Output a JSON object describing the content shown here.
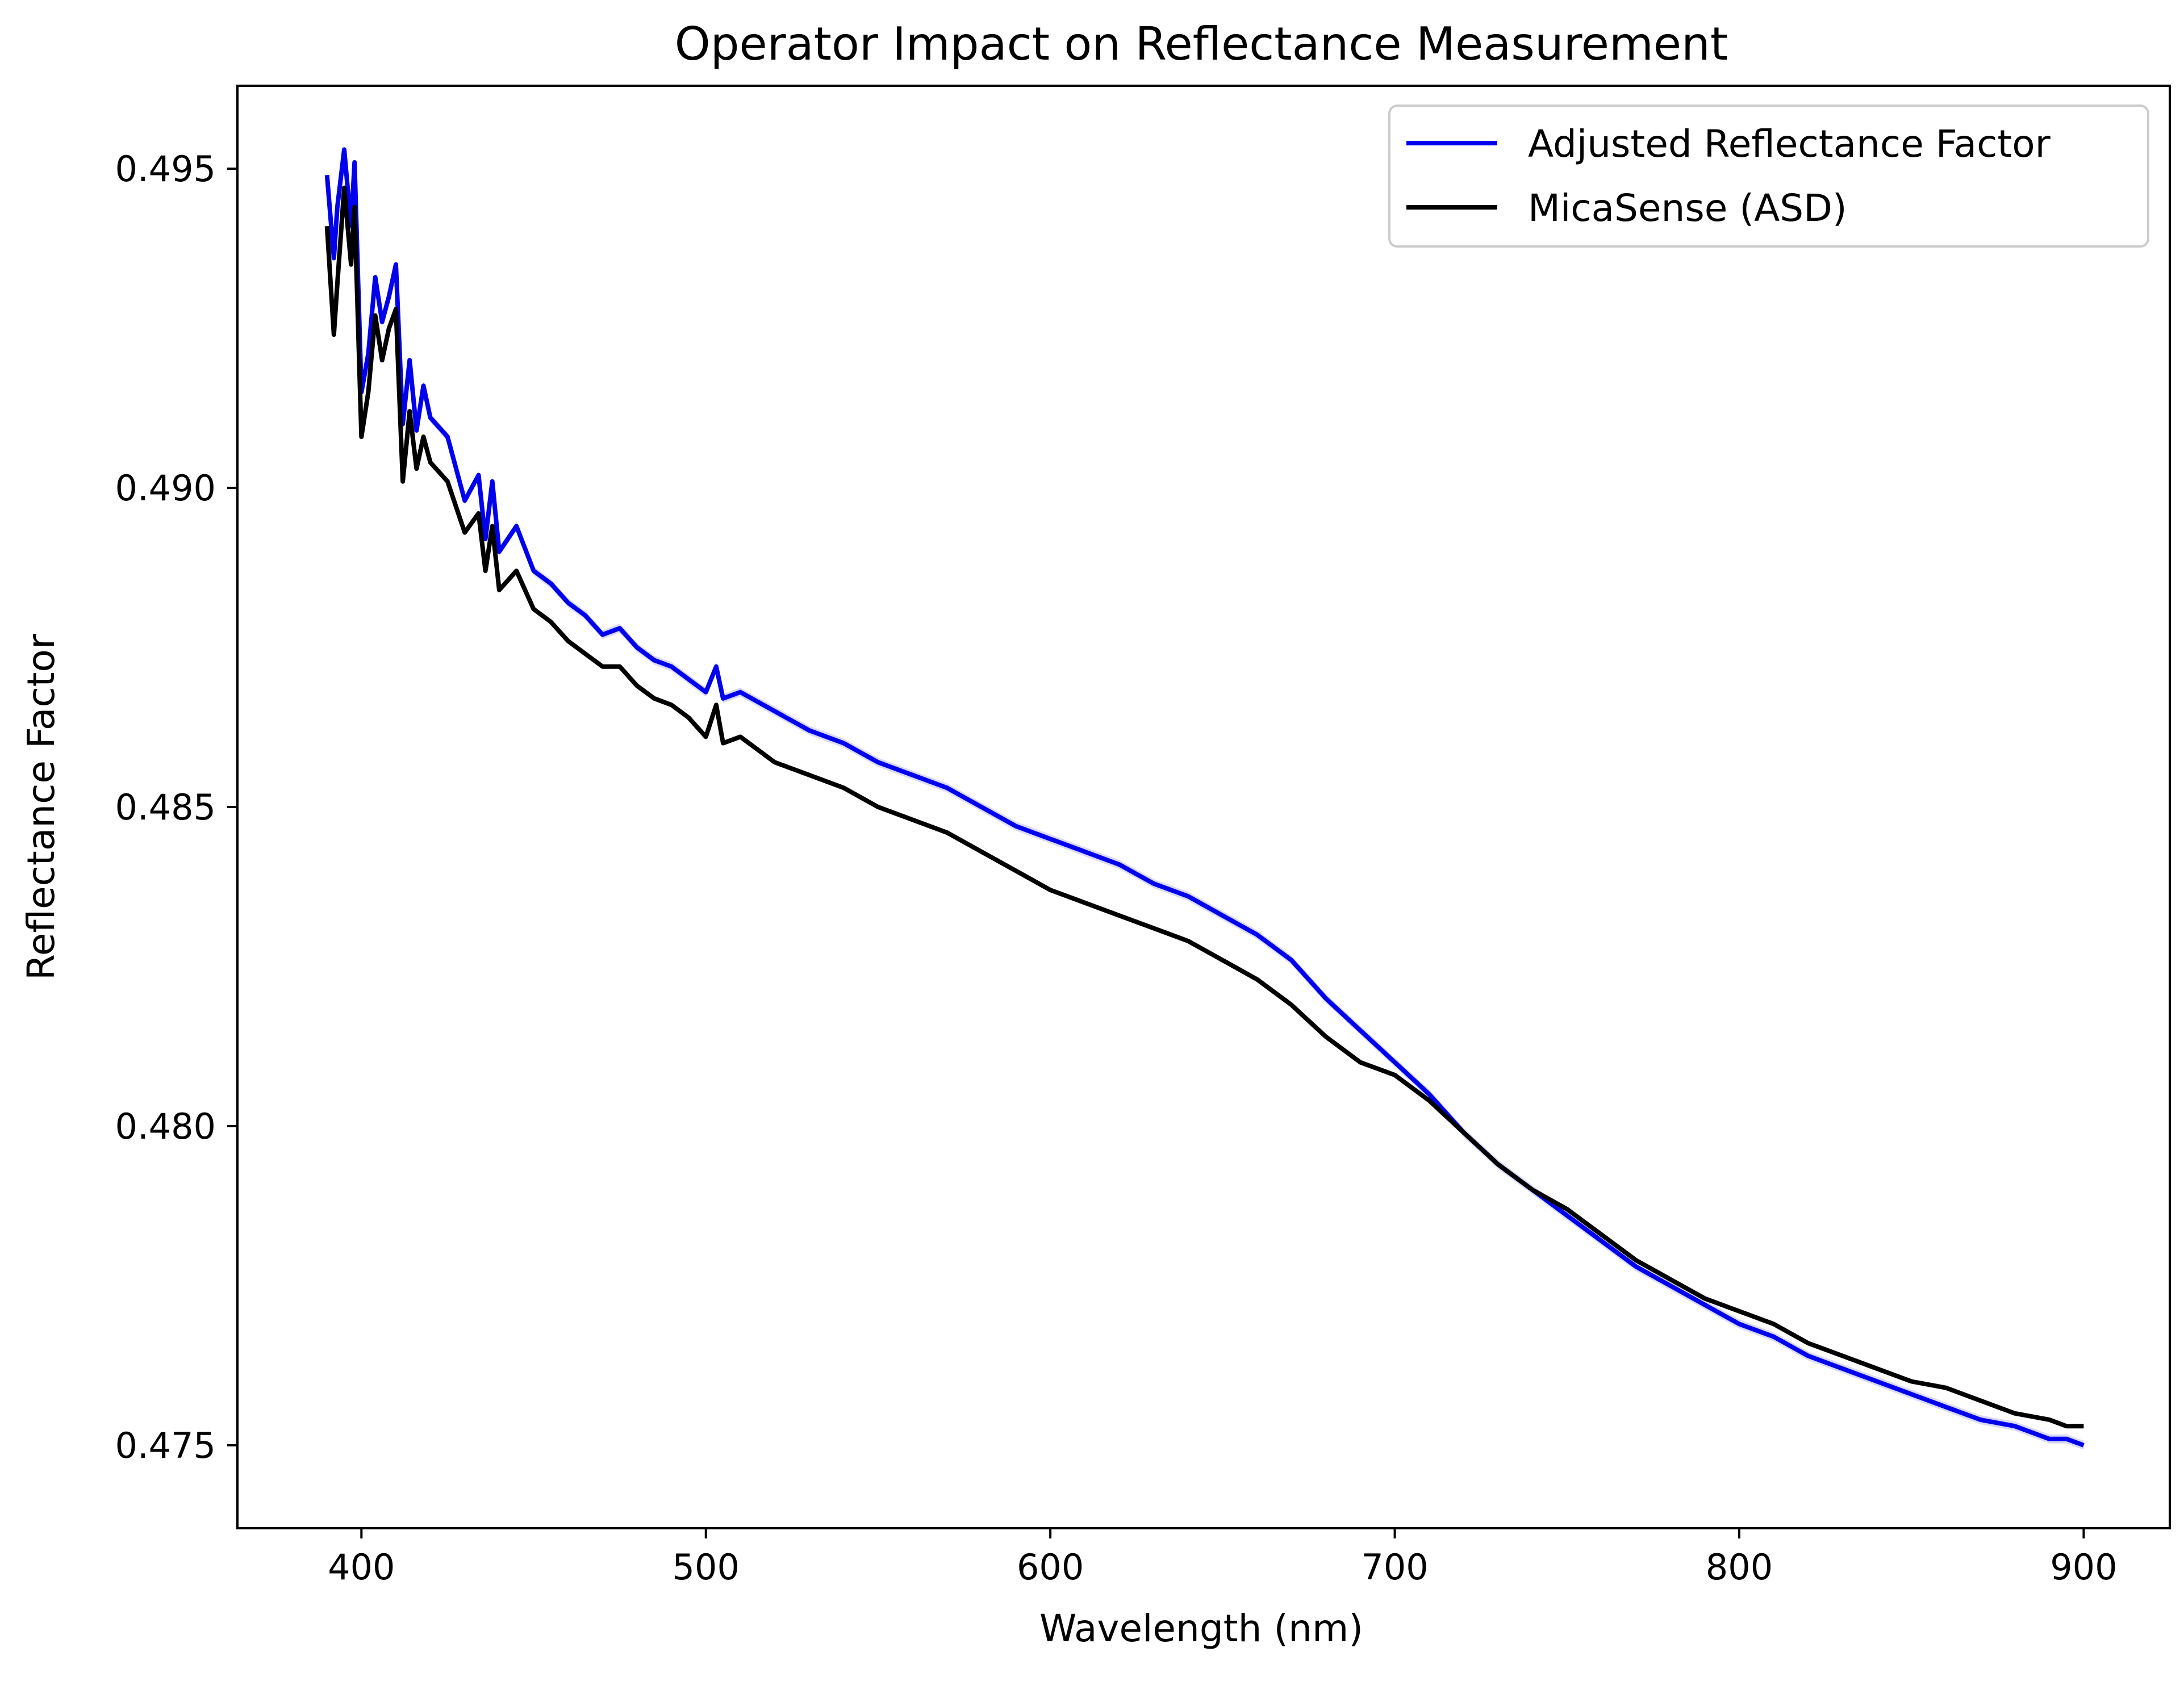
{
  "chart_data": {
    "type": "line",
    "title": "Operator Impact on Reflectance Measurement",
    "xlabel": "Wavelength (nm)",
    "ylabel": "Reflectance Factor",
    "xlim": [
      364,
      925
    ],
    "ylim": [
      0.4737,
      0.4963
    ],
    "xticks": [
      400,
      500,
      600,
      700,
      800,
      900
    ],
    "yticks": [
      0.475,
      0.48,
      0.485,
      0.49,
      0.495
    ],
    "xtick_labels": [
      "400",
      "500",
      "600",
      "700",
      "800",
      "900"
    ],
    "ytick_labels": [
      "0.475",
      "0.480",
      "0.485",
      "0.490",
      "0.495"
    ],
    "grid": false,
    "legend_position": "top-right",
    "series": [
      {
        "name": "Adjusted Reflectance Factor",
        "color": "#0000ee",
        "shaded_band": true,
        "x": [
          390,
          392,
          393,
          395,
          397,
          398,
          400,
          402,
          404,
          406,
          408,
          410,
          412,
          414,
          416,
          418,
          420,
          425,
          430,
          434,
          436,
          438,
          440,
          445,
          450,
          455,
          460,
          465,
          470,
          475,
          480,
          485,
          490,
          495,
          500,
          503,
          505,
          510,
          520,
          530,
          540,
          550,
          560,
          570,
          580,
          590,
          600,
          610,
          620,
          630,
          640,
          650,
          660,
          670,
          680,
          690,
          700,
          710,
          720,
          730,
          740,
          750,
          760,
          770,
          780,
          790,
          800,
          810,
          820,
          830,
          840,
          850,
          860,
          870,
          880,
          890,
          895,
          900
        ],
        "y": [
          0.4949,
          0.4936,
          0.4944,
          0.4953,
          0.4941,
          0.4951,
          0.4915,
          0.4921,
          0.4933,
          0.4926,
          0.493,
          0.4935,
          0.491,
          0.492,
          0.4909,
          0.4916,
          0.4911,
          0.4908,
          0.4898,
          0.4902,
          0.4892,
          0.4901,
          0.489,
          0.4894,
          0.4887,
          0.4885,
          0.4882,
          0.488,
          0.4877,
          0.4878,
          0.4875,
          0.4873,
          0.4872,
          0.487,
          0.4868,
          0.4872,
          0.4867,
          0.4868,
          0.4865,
          0.4862,
          0.486,
          0.4857,
          0.4855,
          0.4853,
          0.485,
          0.4847,
          0.4845,
          0.4843,
          0.4841,
          0.4838,
          0.4836,
          0.4833,
          0.483,
          0.4826,
          0.482,
          0.4815,
          0.481,
          0.4805,
          0.4799,
          0.4794,
          0.479,
          0.4786,
          0.4782,
          0.4778,
          0.4775,
          0.4772,
          0.4769,
          0.4767,
          0.4764,
          0.4762,
          0.476,
          0.4758,
          0.4756,
          0.4754,
          0.4753,
          0.4751,
          0.4751,
          0.475
        ]
      },
      {
        "name": "MicaSense (ASD)",
        "color": "#000000",
        "shaded_band": false,
        "x": [
          390,
          392,
          393,
          395,
          397,
          398,
          400,
          402,
          404,
          406,
          408,
          410,
          412,
          414,
          416,
          418,
          420,
          425,
          430,
          434,
          436,
          438,
          440,
          445,
          450,
          455,
          460,
          465,
          470,
          475,
          480,
          485,
          490,
          495,
          500,
          503,
          505,
          510,
          520,
          530,
          540,
          550,
          560,
          570,
          580,
          590,
          600,
          610,
          620,
          630,
          640,
          650,
          660,
          670,
          680,
          690,
          700,
          710,
          720,
          730,
          740,
          750,
          760,
          770,
          780,
          790,
          800,
          810,
          820,
          830,
          840,
          850,
          860,
          870,
          880,
          890,
          895,
          900
        ],
        "y": [
          0.4941,
          0.4924,
          0.4932,
          0.4947,
          0.4935,
          0.4944,
          0.4908,
          0.4915,
          0.4927,
          0.492,
          0.4925,
          0.4928,
          0.4901,
          0.4912,
          0.4903,
          0.4908,
          0.4904,
          0.4901,
          0.4893,
          0.4896,
          0.4887,
          0.4894,
          0.4884,
          0.4887,
          0.4881,
          0.4879,
          0.4876,
          0.4874,
          0.4872,
          0.4872,
          0.4869,
          0.4867,
          0.4866,
          0.4864,
          0.4861,
          0.4866,
          0.486,
          0.4861,
          0.4857,
          0.4855,
          0.4853,
          0.485,
          0.4848,
          0.4846,
          0.4843,
          0.484,
          0.4837,
          0.4835,
          0.4833,
          0.4831,
          0.4829,
          0.4826,
          0.4823,
          0.4819,
          0.4814,
          0.481,
          0.4808,
          0.4804,
          0.4799,
          0.4794,
          0.479,
          0.4787,
          0.4783,
          0.4779,
          0.4776,
          0.4773,
          0.4771,
          0.4769,
          0.4766,
          0.4764,
          0.4762,
          0.476,
          0.4759,
          0.4757,
          0.4755,
          0.4754,
          0.4753,
          0.4753
        ]
      }
    ]
  }
}
